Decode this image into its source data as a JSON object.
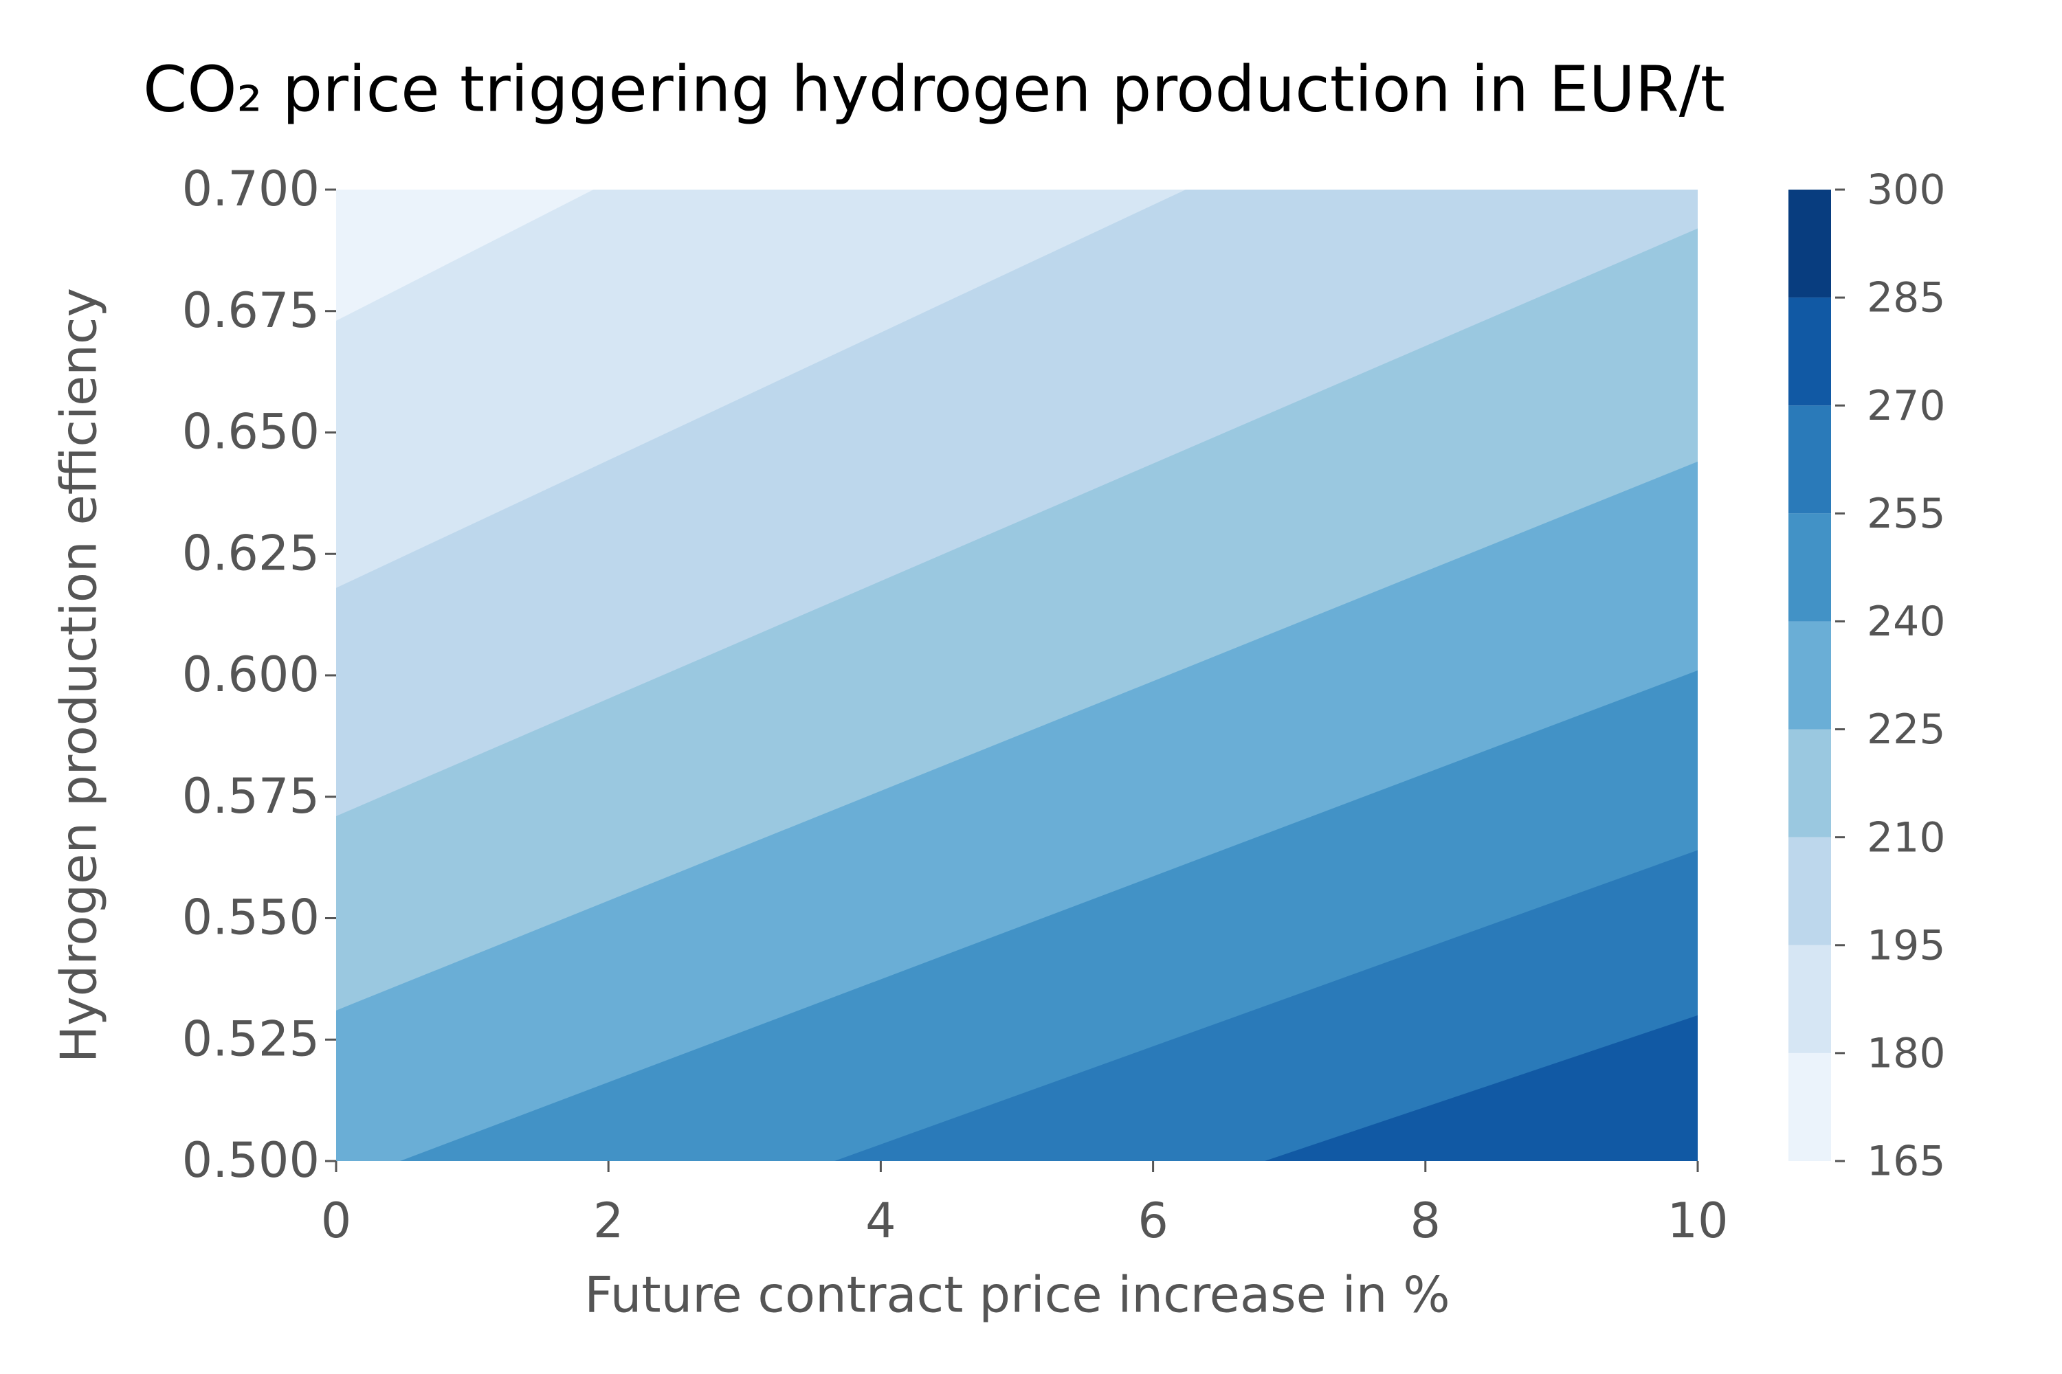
{
  "chart_data": {
    "type": "contourf",
    "title": "CO₂ price triggering hydrogen production in EUR/t",
    "xlabel": "Future contract price increase in %",
    "ylabel": "Hydrogen production efficiency",
    "xlim": [
      0,
      10
    ],
    "ylim": [
      0.5,
      0.7
    ],
    "xticks": [
      0,
      2,
      4,
      6,
      8,
      10
    ],
    "yticks": [
      {
        "value": 0.5,
        "label": "0.500"
      },
      {
        "value": 0.525,
        "label": "0.525"
      },
      {
        "value": 0.55,
        "label": "0.550"
      },
      {
        "value": 0.575,
        "label": "0.575"
      },
      {
        "value": 0.6,
        "label": "0.600"
      },
      {
        "value": 0.625,
        "label": "0.625"
      },
      {
        "value": 0.65,
        "label": "0.650"
      },
      {
        "value": 0.675,
        "label": "0.675"
      },
      {
        "value": 0.7,
        "label": "0.700"
      }
    ],
    "levels": [
      165,
      180,
      195,
      210,
      225,
      240,
      255,
      270,
      285,
      300
    ],
    "colors": [
      "#ebf3fb",
      "#d6e6f4",
      "#bdd7ec",
      "#9ac8e0",
      "#6aaed6",
      "#4292c6",
      "#2a7ab9",
      "#1159a4",
      "#083d7f"
    ],
    "contours": [
      {
        "level": 180,
        "x": [
          0,
          1.89
        ],
        "y": [
          0.673,
          0.7
        ]
      },
      {
        "level": 195,
        "x": [
          0,
          6.24
        ],
        "y": [
          0.618,
          0.7
        ]
      },
      {
        "level": 210,
        "x": [
          0,
          10
        ],
        "y": [
          0.571,
          0.692
        ]
      },
      {
        "level": 225,
        "x": [
          0,
          10
        ],
        "y": [
          0.531,
          0.644
        ]
      },
      {
        "level": 240,
        "x": [
          0.47,
          10
        ],
        "y": [
          0.5,
          0.601
        ]
      },
      {
        "level": 255,
        "x": [
          3.66,
          10
        ],
        "y": [
          0.5,
          0.564
        ]
      },
      {
        "level": 270,
        "x": [
          6.82,
          10
        ],
        "y": [
          0.5,
          0.53
        ]
      }
    ]
  }
}
